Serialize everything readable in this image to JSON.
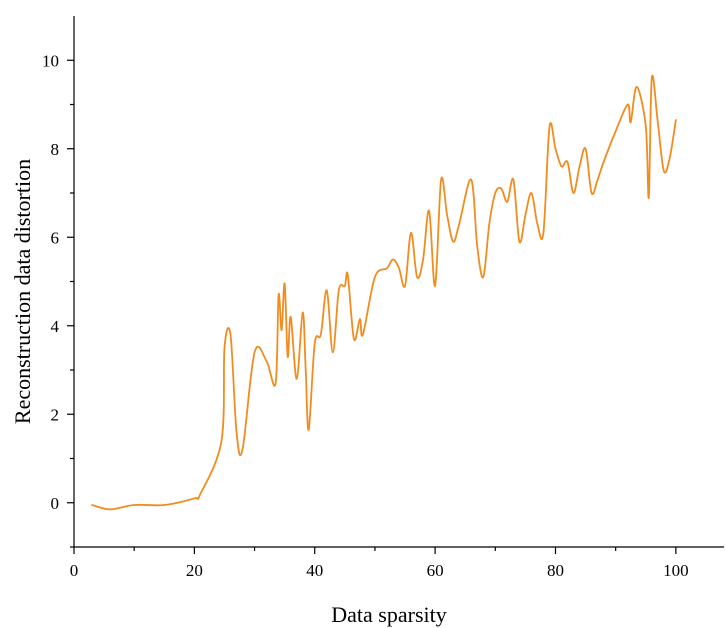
{
  "chart_data": {
    "type": "line",
    "title": "",
    "xlabel": "Data sparsity",
    "ylabel": "Reconstruction data distortion",
    "xlim": [
      0,
      108
    ],
    "ylim": [
      -1,
      11
    ],
    "x_ticks": [
      0,
      20,
      40,
      60,
      80,
      100
    ],
    "x_tick_labels": [
      "0",
      "20",
      "40",
      "60",
      "80",
      "100"
    ],
    "y_ticks": [
      0,
      2,
      4,
      6,
      8,
      10
    ],
    "y_tick_labels": [
      "0",
      "2",
      "4",
      "6",
      "8",
      "10"
    ],
    "grid": false,
    "legend": "none",
    "colors": {
      "series": "#f28c1e",
      "axis": "#000000"
    },
    "series": [
      {
        "x": [
          3,
          6,
          10,
          15,
          20,
          21,
          24.5,
          25,
          26,
          27,
          28,
          30,
          32,
          33.5,
          34,
          34.5,
          35,
          35.5,
          36,
          37,
          38,
          38.5,
          39,
          40,
          41,
          42,
          43,
          44,
          45,
          45.5,
          46.5,
          47.5,
          48,
          50,
          52,
          53,
          54,
          55,
          56,
          57,
          58,
          59,
          60,
          61,
          62,
          63,
          64,
          66,
          67,
          68,
          69,
          70,
          71,
          72,
          73,
          74,
          75,
          76,
          77,
          78,
          79,
          80,
          81,
          82,
          83,
          84,
          85,
          86,
          87,
          88,
          90,
          92,
          92.5,
          93.5,
          95,
          95.5,
          96,
          97,
          98,
          99,
          100
        ],
        "y": [
          -0.05,
          -0.15,
          -0.05,
          -0.05,
          0.1,
          0.2,
          1.4,
          3.5,
          3.8,
          1.6,
          1.2,
          3.4,
          3.2,
          2.7,
          4.7,
          3.9,
          4.95,
          3.3,
          4.2,
          2.8,
          4.3,
          3.0,
          1.65,
          3.6,
          3.8,
          4.8,
          3.4,
          4.8,
          4.9,
          5.15,
          3.7,
          4.15,
          3.8,
          5.1,
          5.3,
          5.5,
          5.3,
          4.9,
          6.1,
          5.1,
          5.5,
          6.6,
          4.9,
          7.3,
          6.5,
          5.9,
          6.3,
          7.3,
          5.8,
          5.1,
          6.3,
          7.0,
          7.1,
          6.8,
          7.3,
          5.9,
          6.5,
          7.0,
          6.3,
          6.1,
          8.5,
          8.0,
          7.6,
          7.7,
          7.0,
          7.6,
          8.0,
          7.0,
          7.3,
          7.7,
          8.4,
          9.0,
          8.6,
          9.4,
          8.5,
          6.9,
          9.6,
          8.6,
          7.5,
          7.8,
          8.65
        ]
      }
    ]
  }
}
